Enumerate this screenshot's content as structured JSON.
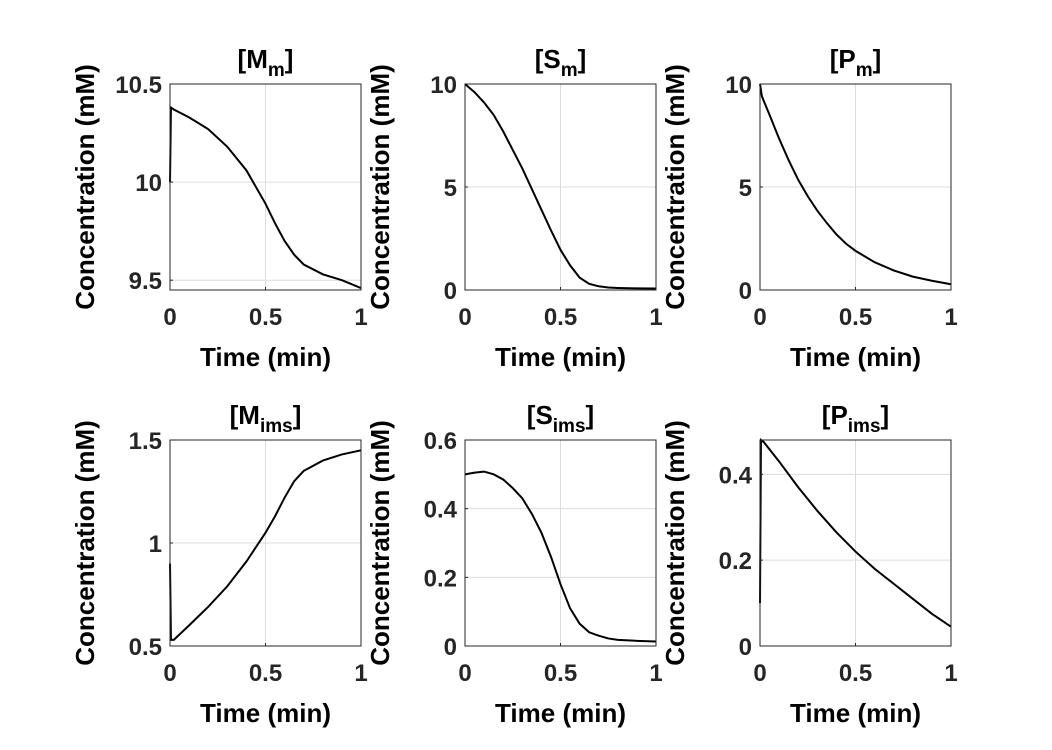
{
  "chart_data": [
    {
      "type": "line",
      "title": "[M",
      "title_sub": "m",
      "title_end": "]",
      "xlabel": "Time (min)",
      "ylabel": "Concentration (mM)",
      "xlim": [
        0,
        1
      ],
      "ylim": [
        9.45,
        10.5
      ],
      "xticks": [
        0,
        0.5,
        1
      ],
      "xtick_labels": [
        "0",
        "0.5",
        "1"
      ],
      "yticks": [
        9.5,
        10,
        10.5
      ],
      "ytick_labels": [
        "9.5",
        "10",
        "10.5"
      ],
      "grid": true,
      "series": [
        {
          "x": [
            0,
            0.005,
            0.02,
            0.1,
            0.2,
            0.3,
            0.4,
            0.5,
            0.55,
            0.6,
            0.65,
            0.7,
            0.8,
            0.9,
            1.0
          ],
          "y": [
            10.0,
            10.38,
            10.37,
            10.33,
            10.27,
            10.18,
            10.06,
            9.89,
            9.79,
            9.7,
            9.63,
            9.58,
            9.53,
            9.5,
            9.46
          ]
        }
      ]
    },
    {
      "type": "line",
      "title": "[S",
      "title_sub": "m",
      "title_end": "]",
      "xlabel": "Time (min)",
      "ylabel": "Concentration (mM)",
      "xlim": [
        0,
        1
      ],
      "ylim": [
        0,
        10
      ],
      "xticks": [
        0,
        0.5,
        1
      ],
      "xtick_labels": [
        "0",
        "0.5",
        "1"
      ],
      "yticks": [
        0,
        5,
        10
      ],
      "ytick_labels": [
        "0",
        "5",
        "10"
      ],
      "grid": true,
      "series": [
        {
          "x": [
            0,
            0.05,
            0.1,
            0.15,
            0.2,
            0.25,
            0.3,
            0.35,
            0.4,
            0.45,
            0.5,
            0.55,
            0.6,
            0.65,
            0.7,
            0.75,
            0.8,
            0.9,
            1.0
          ],
          "y": [
            10.0,
            9.6,
            9.1,
            8.5,
            7.7,
            6.8,
            5.9,
            4.9,
            3.9,
            2.9,
            1.95,
            1.2,
            0.6,
            0.3,
            0.18,
            0.12,
            0.1,
            0.08,
            0.07
          ]
        }
      ]
    },
    {
      "type": "line",
      "title": "[P",
      "title_sub": "m",
      "title_end": "]",
      "xlabel": "Time (min)",
      "ylabel": "Concentration (mM)",
      "xlim": [
        0,
        1
      ],
      "ylim": [
        0,
        10
      ],
      "xticks": [
        0,
        0.5,
        1
      ],
      "xtick_labels": [
        "0",
        "0.5",
        "1"
      ],
      "yticks": [
        0,
        5,
        10
      ],
      "ytick_labels": [
        "0",
        "5",
        "10"
      ],
      "grid": true,
      "series": [
        {
          "x": [
            0,
            0.01,
            0.05,
            0.1,
            0.15,
            0.2,
            0.25,
            0.3,
            0.35,
            0.4,
            0.45,
            0.5,
            0.6,
            0.7,
            0.8,
            0.9,
            1.0
          ],
          "y": [
            10.0,
            9.4,
            8.5,
            7.35,
            6.3,
            5.35,
            4.55,
            3.85,
            3.25,
            2.7,
            2.25,
            1.9,
            1.35,
            0.95,
            0.65,
            0.45,
            0.28
          ]
        }
      ]
    },
    {
      "type": "line",
      "title": "[M",
      "title_sub": "ims",
      "title_end": "]",
      "xlabel": "Time (min)",
      "ylabel": "Concentration (mM)",
      "xlim": [
        0,
        1
      ],
      "ylim": [
        0.5,
        1.5
      ],
      "xticks": [
        0,
        0.5,
        1
      ],
      "xtick_labels": [
        "0",
        "0.5",
        "1"
      ],
      "yticks": [
        0.5,
        1,
        1.5
      ],
      "ytick_labels": [
        "0.5",
        "1",
        "1.5"
      ],
      "grid": true,
      "series": [
        {
          "x": [
            0,
            0.005,
            0.02,
            0.1,
            0.2,
            0.3,
            0.4,
            0.5,
            0.55,
            0.6,
            0.65,
            0.7,
            0.8,
            0.9,
            1.0
          ],
          "y": [
            0.9,
            0.53,
            0.53,
            0.6,
            0.69,
            0.79,
            0.91,
            1.05,
            1.13,
            1.22,
            1.3,
            1.35,
            1.4,
            1.43,
            1.45
          ]
        }
      ]
    },
    {
      "type": "line",
      "title": "[S",
      "title_sub": "ims",
      "title_end": "]",
      "xlabel": "Time (min)",
      "ylabel": "Concentration (mM)",
      "xlim": [
        0,
        1
      ],
      "ylim": [
        0,
        0.6
      ],
      "xticks": [
        0,
        0.5,
        1
      ],
      "xtick_labels": [
        "0",
        "0.5",
        "1"
      ],
      "yticks": [
        0,
        0.2,
        0.4,
        0.6
      ],
      "ytick_labels": [
        "0",
        "0.2",
        "0.4",
        "0.6"
      ],
      "grid": true,
      "series": [
        {
          "x": [
            0,
            0.05,
            0.1,
            0.15,
            0.2,
            0.25,
            0.3,
            0.35,
            0.4,
            0.45,
            0.5,
            0.55,
            0.6,
            0.65,
            0.7,
            0.75,
            0.8,
            0.9,
            1.0
          ],
          "y": [
            0.5,
            0.505,
            0.508,
            0.5,
            0.485,
            0.46,
            0.43,
            0.385,
            0.33,
            0.26,
            0.18,
            0.11,
            0.065,
            0.04,
            0.03,
            0.022,
            0.018,
            0.015,
            0.013
          ]
        }
      ]
    },
    {
      "type": "line",
      "title": "[P",
      "title_sub": "ims",
      "title_end": "]",
      "xlabel": "Time (min)",
      "ylabel": "Concentration (mM)",
      "xlim": [
        0,
        1
      ],
      "ylim": [
        0,
        0.48
      ],
      "xticks": [
        0,
        0.5,
        1
      ],
      "xtick_labels": [
        "0",
        "0.5",
        "1"
      ],
      "yticks": [
        0,
        0.2,
        0.4
      ],
      "ytick_labels": [
        "0",
        "0.2",
        "0.4"
      ],
      "grid": true,
      "series": [
        {
          "x": [
            0,
            0.005,
            0.02,
            0.1,
            0.2,
            0.3,
            0.4,
            0.5,
            0.6,
            0.7,
            0.8,
            0.9,
            1.0
          ],
          "y": [
            0.1,
            0.48,
            0.475,
            0.43,
            0.37,
            0.315,
            0.265,
            0.22,
            0.18,
            0.145,
            0.11,
            0.075,
            0.045
          ]
        }
      ]
    }
  ]
}
